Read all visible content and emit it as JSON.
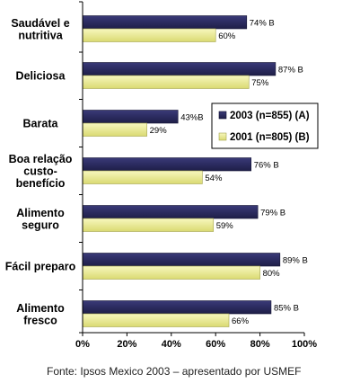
{
  "chart_data": {
    "type": "bar",
    "orientation": "horizontal",
    "categories": [
      [
        "Saudável e",
        "nutritiva"
      ],
      [
        "Deliciosa"
      ],
      [
        "Barata"
      ],
      [
        "Boa relação",
        "custo-",
        "benefício"
      ],
      [
        "Alimento",
        "seguro"
      ],
      [
        "Fácil preparo"
      ],
      [
        "Alimento",
        "fresco"
      ]
    ],
    "series": [
      {
        "name": "2003 (n=855) (A)",
        "color": "#2a2a5c",
        "values": [
          74,
          87,
          43,
          76,
          79,
          89,
          85
        ],
        "labels": [
          "74% B",
          "87% B",
          "43%B",
          "76% B",
          "79% B",
          "89% B",
          "85% B"
        ]
      },
      {
        "name": "2001 (n=805) (B)",
        "color": "#ecec96",
        "values": [
          60,
          75,
          29,
          54,
          59,
          80,
          66
        ],
        "labels": [
          "60%",
          "75%",
          "29%",
          "54%",
          "59%",
          "80%",
          "66%"
        ]
      }
    ],
    "xlim": [
      0,
      100
    ],
    "xticks": [
      "0%",
      "20%",
      "40%",
      "60%",
      "80%",
      "100%"
    ],
    "legend_position": "right",
    "grid": false
  },
  "source": "Fonte: Ipsos Mexico 2003 – apresentado por USMEF"
}
